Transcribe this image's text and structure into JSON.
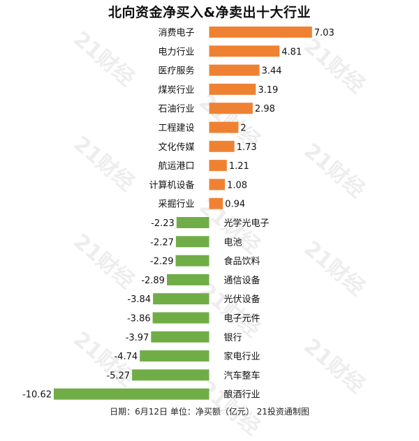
{
  "title": "北向资金净买入&净卖出十大行业",
  "footer": "日期：6月12日  单位：净买额（亿元）  21投资通制图",
  "watermark": "21财经",
  "colors": {
    "positive": "#ef8232",
    "negative": "#70ad47"
  },
  "chart_data": {
    "type": "bar",
    "orientation": "horizontal",
    "categories": [
      "消费电子",
      "电力行业",
      "医疗服务",
      "煤炭行业",
      "石油行业",
      "工程建设",
      "文化传媒",
      "航运港口",
      "计算机设备",
      "采掘行业",
      "光学光电子",
      "电池",
      "食品饮料",
      "通信设备",
      "光伏设备",
      "电子元件",
      "银行",
      "家电行业",
      "汽车整车",
      "酿酒行业"
    ],
    "values": [
      7.03,
      4.81,
      3.44,
      3.19,
      2.98,
      2,
      1.73,
      1.21,
      1.08,
      0.94,
      -2.23,
      -2.27,
      -2.29,
      -2.89,
      -3.84,
      -3.86,
      -3.97,
      -4.74,
      -5.27,
      -10.62
    ],
    "value_labels": [
      "7.03",
      "4.81",
      "3.44",
      "3.19",
      "2.98",
      "2",
      "1.73",
      "1.21",
      "1.08",
      "0.94",
      "-2.23",
      "-2.27",
      "-2.29",
      "-2.89",
      "-3.84",
      "-3.86",
      "-3.97",
      "-4.74",
      "-5.27",
      "-10.62"
    ],
    "xlim": [
      -10.62,
      7.03
    ],
    "grid": false,
    "legend": "none"
  }
}
